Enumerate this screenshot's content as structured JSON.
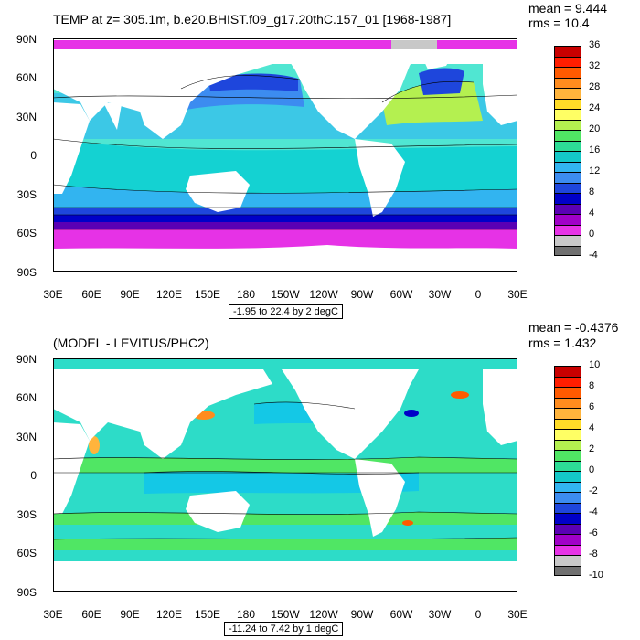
{
  "top_panel": {
    "title": "TEMP at z= 305.1m, b.e20.BHIST.f09_g17.20thC.157_01 [1968-1987]",
    "mean": "mean = 9.444",
    "rms": "rms = 10.4",
    "contour_info": "-1.95 to 22.4 by 2 degC",
    "colorbar_labels": [
      "36",
      "32",
      "28",
      "24",
      "20",
      "16",
      "12",
      "8",
      "4",
      "0",
      "-4"
    ],
    "colorbar_colors": [
      "#c80000",
      "#ff1e00",
      "#ff5a00",
      "#ff8c1e",
      "#ffb43c",
      "#ffdc28",
      "#ffff64",
      "#b4f050",
      "#50e664",
      "#2ddc96",
      "#14c8c8",
      "#32b4f0",
      "#3c8cf0",
      "#1e46dc",
      "#0000c8",
      "#5a00b4",
      "#a000c8",
      "#e632e6",
      "#c8c8c8",
      "#707070"
    ],
    "ylabels": [
      "90N",
      "60N",
      "30N",
      "0",
      "30S",
      "60S",
      "90S"
    ],
    "xlabels": [
      "30E",
      "60E",
      "90E",
      "120E",
      "150E",
      "180",
      "150W",
      "120W",
      "90W",
      "60W",
      "30W",
      "0",
      "30E"
    ]
  },
  "bottom_panel": {
    "title": "(MODEL - LEVITUS/PHC2)",
    "mean": "mean = -0.4376",
    "rms": "rms = 1.432",
    "contour_info": "-11.24 to 7.42 by 1 degC",
    "colorbar_labels": [
      "10",
      "8",
      "6",
      "4",
      "2",
      "0",
      "-2",
      "-4",
      "-6",
      "-8",
      "-10"
    ],
    "colorbar_colors": [
      "#c80000",
      "#ff1e00",
      "#ff5a00",
      "#ff8c1e",
      "#ffb43c",
      "#ffdc28",
      "#ffff64",
      "#b4f050",
      "#50e664",
      "#2ddc96",
      "#14c8c8",
      "#32b4f0",
      "#3c8cf0",
      "#1e46dc",
      "#0000c8",
      "#5a00b4",
      "#a000c8",
      "#e632e6",
      "#c8c8c8",
      "#707070"
    ],
    "ylabels": [
      "90N",
      "60N",
      "30N",
      "0",
      "30S",
      "60S",
      "90S"
    ],
    "xlabels": [
      "30E",
      "60E",
      "90E",
      "120E",
      "150E",
      "180",
      "150W",
      "120W",
      "90W",
      "60W",
      "30W",
      "0",
      "30E"
    ]
  }
}
